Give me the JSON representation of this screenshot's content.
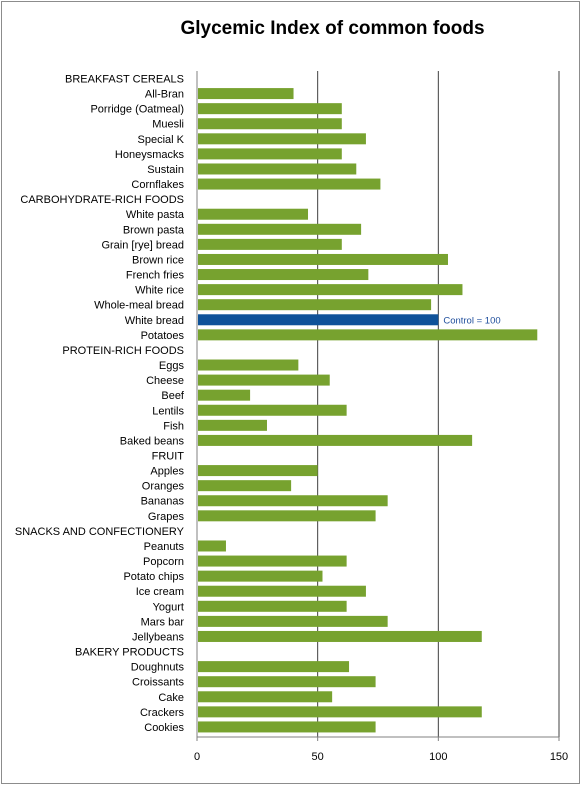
{
  "chart_data": {
    "type": "bar",
    "orientation": "horizontal",
    "title": "Glycemic Index of common foods",
    "xlim": [
      0,
      150
    ],
    "xticks": [
      "0",
      "50",
      "100",
      "150"
    ],
    "grid": "vertical lines at 50, 100 and 150",
    "bar_color": "#77a22f",
    "highlight_color": "#0f5299",
    "annotation": "Control = 100",
    "categories": [
      "BREAKFAST CEREALS",
      "All-Bran",
      "Porridge (Oatmeal)",
      "Muesli",
      "Special K",
      "Honeysmacks",
      "Sustain",
      "Cornflakes",
      "CARBOHYDRATE-RICH  FOODS",
      "White pasta",
      "Brown pasta",
      "Grain [rye] bread",
      "Brown rice",
      "French fries",
      "White rice",
      "Whole-meal bread",
      "White bread",
      "Potatoes",
      "PROTEIN-RICH  FOODS",
      "Eggs",
      "Cheese",
      "Beef",
      "Lentils",
      "Fish",
      "Baked beans",
      "FRUIT",
      "Apples",
      "Oranges",
      "Bananas",
      "Grapes",
      "SNACKS AND CONFECTIONERY",
      "Peanuts",
      "Popcorn",
      "Potato chips",
      "Ice cream",
      "Yogurt",
      "Mars bar",
      "Jellybeans",
      "BAKERY PRODUCTS",
      "Doughnuts",
      "Croissants",
      "Cake",
      "Crackers",
      "Cookies"
    ],
    "values": [
      null,
      40,
      60,
      60,
      70,
      60,
      66,
      76,
      null,
      46,
      68,
      60,
      104,
      71,
      110,
      97,
      100,
      141,
      null,
      42,
      55,
      22,
      62,
      29,
      114,
      null,
      50,
      39,
      79,
      74,
      null,
      12,
      62,
      52,
      70,
      62,
      79,
      118,
      null,
      63,
      74,
      56,
      118,
      74
    ],
    "highlight_category": "White bread"
  }
}
